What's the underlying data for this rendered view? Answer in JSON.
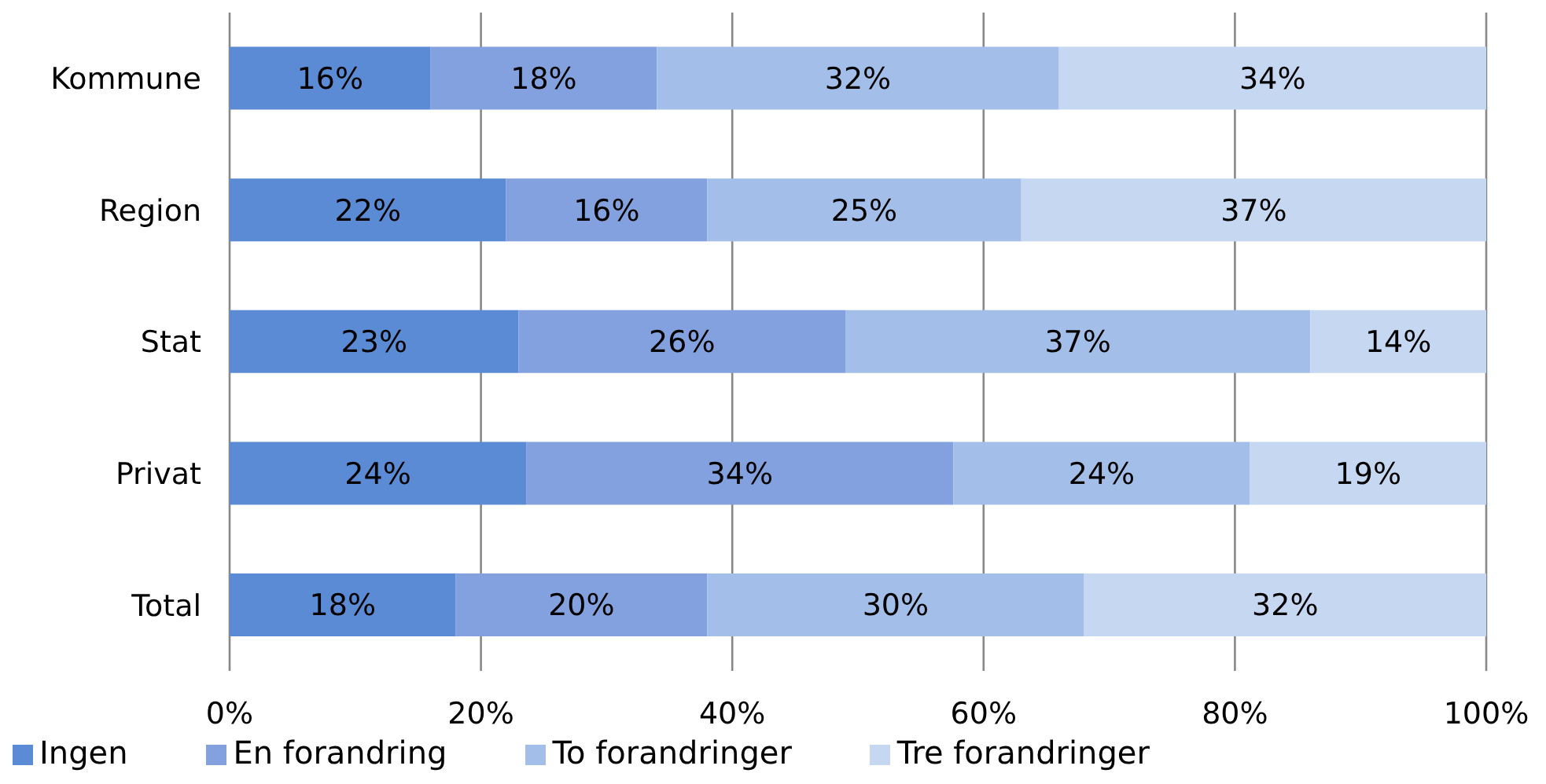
{
  "chart_data": {
    "type": "bar",
    "orientation": "horizontal",
    "stacked": true,
    "categories": [
      "Kommune",
      "Region",
      "Stat",
      "Privat",
      "Total"
    ],
    "series": [
      {
        "name": "Ingen",
        "color": "#5b8bd4",
        "values": [
          16,
          22,
          23,
          23.6,
          18
        ],
        "value_labels": [
          "16%",
          "22%",
          "23%",
          "24%",
          "18%"
        ]
      },
      {
        "name": "En forandring",
        "color": "#82a1de",
        "values": [
          18,
          16,
          26,
          34,
          20
        ],
        "value_labels": [
          "18%",
          "16%",
          "26%",
          "34%",
          "20%"
        ]
      },
      {
        "name": "To forandringer",
        "color": "#a3bfe9",
        "values": [
          32,
          25,
          37,
          23.6,
          30
        ],
        "value_labels": [
          "32%",
          "25%",
          "37%",
          "24%",
          "30%"
        ]
      },
      {
        "name": "Tre forandringer",
        "color": "#c5d7f1",
        "values": [
          34,
          37,
          14,
          18.8,
          32
        ],
        "value_labels": [
          "34%",
          "37%",
          "14%",
          "19%",
          "32%"
        ]
      }
    ],
    "xlim": [
      0,
      100
    ],
    "xticks": [
      {
        "value": 0,
        "label": "0%"
      },
      {
        "value": 20,
        "label": "20%"
      },
      {
        "value": 40,
        "label": "40%"
      },
      {
        "value": 60,
        "label": "60%"
      },
      {
        "value": 80,
        "label": "80%"
      },
      {
        "value": 100,
        "label": "100%"
      }
    ],
    "grid": "x",
    "legend": "bottom left"
  }
}
